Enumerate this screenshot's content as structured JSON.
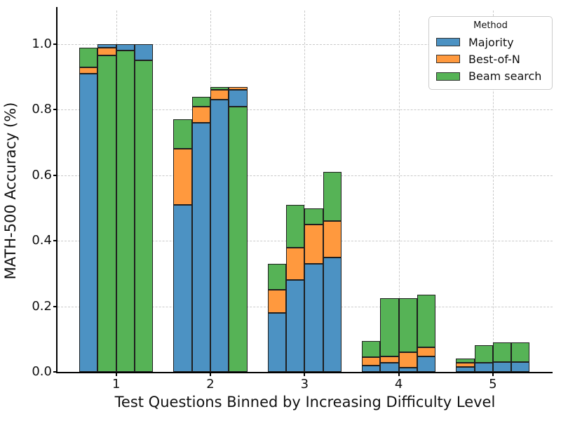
{
  "chart_data": {
    "type": "bar",
    "title": "",
    "xlabel": "Test Questions Binned by Increasing Difficulty Level",
    "ylabel": "MATH-500 Accuracy (%)",
    "x_ticks": [
      "1",
      "2",
      "3",
      "4",
      "5"
    ],
    "y_ticks": [
      "0.0",
      "0.2",
      "0.4",
      "0.6",
      "0.8",
      "1.0"
    ],
    "y_tick_values": [
      0.0,
      0.2,
      0.4,
      0.6,
      0.8,
      1.0
    ],
    "ylim": [
      0,
      1.103
    ],
    "grid": "dashed, both axes",
    "bar_style": "4 overlaid bars per difficulty bin; per bar the three methods are overlaid with the shortest drawn in front, so visible segments read shortest-to-tallest from bottom to top",
    "legend": {
      "title": "Method",
      "position": "upper right",
      "entries": [
        {
          "label": "Majority",
          "series_key": "majority"
        },
        {
          "label": "Best-of-N",
          "series_key": "best_of_n"
        },
        {
          "label": "Beam search",
          "series_key": "beam_search"
        }
      ]
    },
    "colors": {
      "majority": "#4C92C3",
      "best_of_n": "#FF993E",
      "beam_search": "#56B356",
      "edge": "#1f1f1f",
      "grid": "#c9c9c9"
    },
    "groups": [
      {
        "difficulty": "1",
        "bars": [
          {
            "majority": 0.91,
            "best_of_n": 0.93,
            "beam_search": 0.99
          },
          {
            "majority": 1.0,
            "best_of_n": 0.99,
            "beam_search": 0.965
          },
          {
            "majority": 1.0,
            "best_of_n": 0.98,
            "beam_search": 0.98
          },
          {
            "majority": 1.0,
            "best_of_n": 0.95,
            "beam_search": 0.95
          }
        ]
      },
      {
        "difficulty": "2",
        "bars": [
          {
            "majority": 0.51,
            "best_of_n": 0.68,
            "beam_search": 0.77
          },
          {
            "majority": 0.76,
            "best_of_n": 0.81,
            "beam_search": 0.84
          },
          {
            "majority": 0.83,
            "best_of_n": 0.86,
            "beam_search": 0.87
          },
          {
            "majority": 0.86,
            "best_of_n": 0.87,
            "beam_search": 0.81
          }
        ]
      },
      {
        "difficulty": "3",
        "bars": [
          {
            "majority": 0.18,
            "best_of_n": 0.25,
            "beam_search": 0.33
          },
          {
            "majority": 0.28,
            "best_of_n": 0.38,
            "beam_search": 0.51
          },
          {
            "majority": 0.33,
            "best_of_n": 0.45,
            "beam_search": 0.5
          },
          {
            "majority": 0.35,
            "best_of_n": 0.46,
            "beam_search": 0.61
          }
        ]
      },
      {
        "difficulty": "4",
        "bars": [
          {
            "majority": 0.02,
            "best_of_n": 0.045,
            "beam_search": 0.095
          },
          {
            "majority": 0.027,
            "best_of_n": 0.047,
            "beam_search": 0.225
          },
          {
            "majority": 0.012,
            "best_of_n": 0.06,
            "beam_search": 0.225
          },
          {
            "majority": 0.048,
            "best_of_n": 0.075,
            "beam_search": 0.235
          }
        ]
      },
      {
        "difficulty": "5",
        "bars": [
          {
            "majority": 0.016,
            "best_of_n": 0.028,
            "beam_search": 0.04
          },
          {
            "majority": 0.028,
            "best_of_n": 0.028,
            "beam_search": 0.081
          },
          {
            "majority": 0.029,
            "best_of_n": 0.029,
            "beam_search": 0.09
          },
          {
            "majority": 0.029,
            "best_of_n": 0.029,
            "beam_search": 0.09
          }
        ]
      }
    ]
  }
}
